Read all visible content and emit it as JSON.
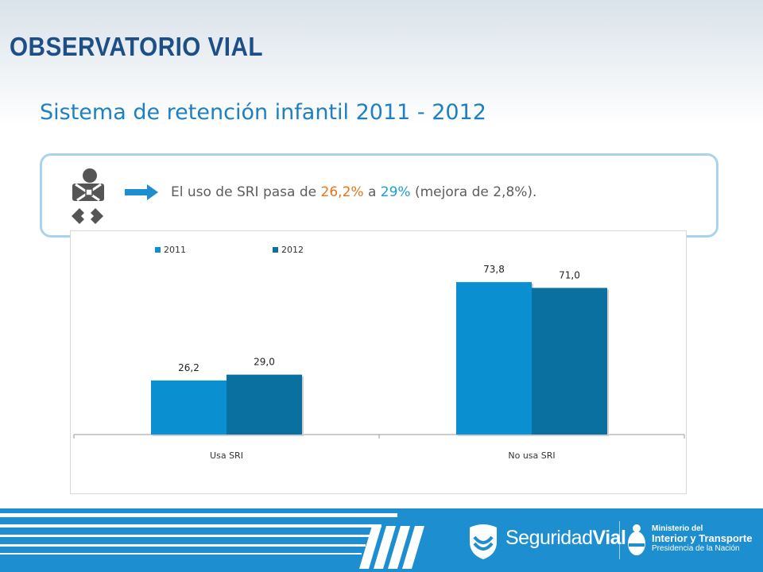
{
  "header": {
    "logo": "OBSERVATORIO VIAL",
    "title": "Sistema de retención infantil 2011 - 2012"
  },
  "callout": {
    "text_before": "El uso de SRI pasa de ",
    "value_2011": "26,2%",
    "text_middle": " a ",
    "value_2012": "29%",
    "text_after": " (mejora de 2,8%).",
    "icons": [
      "child-seat-icon",
      "arrow-right-icon"
    ]
  },
  "colors": {
    "series_2011": "#0a8fd1",
    "series_2012": "#0a70a0",
    "title": "#1e7fc3",
    "footer": "#1d8fd0"
  },
  "chart_data": {
    "type": "bar",
    "categories": [
      "Usa SRI",
      "No usa SRI"
    ],
    "series": [
      {
        "name": "2011",
        "values": [
          26.2,
          73.8
        ],
        "labels": [
          "26,2",
          "73,8"
        ]
      },
      {
        "name": "2012",
        "values": [
          29.0,
          71.0
        ],
        "labels": [
          "29,0",
          "71,0"
        ]
      }
    ],
    "ylim": [
      0,
      85
    ],
    "legend": "top-left",
    "grid": false
  },
  "footer": {
    "brand_light": "Seguridad",
    "brand_bold": "Vial",
    "ministry_line1": "Ministerio del",
    "ministry_line2": "Interior y Transporte",
    "ministry_line3": "Presidencia de la Nación"
  }
}
